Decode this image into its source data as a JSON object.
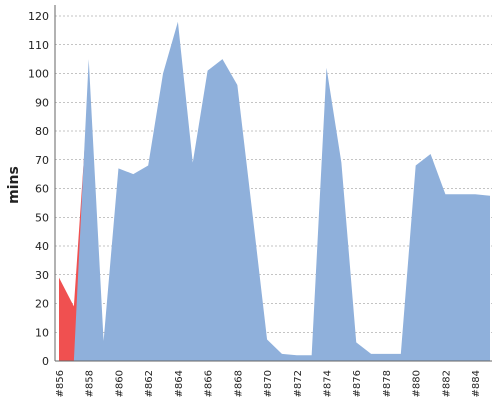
{
  "chart_data": {
    "type": "area",
    "y_label": "mins",
    "categories": [
      "#856",
      null,
      "#858",
      null,
      "#860",
      null,
      "#862",
      null,
      "#864",
      null,
      "#866",
      null,
      "#868",
      null,
      "#870",
      null,
      "#872",
      null,
      "#874",
      null,
      "#876",
      null,
      "#878",
      null,
      "#880",
      null,
      "#882",
      null,
      "#884",
      null
    ],
    "series": [
      {
        "color": "#f05050",
        "values": [
          29,
          19,
          95,
          null,
          null,
          null,
          null,
          null,
          null,
          null,
          null,
          null,
          null,
          null,
          null,
          null,
          null,
          null,
          null,
          null,
          null,
          null,
          null,
          null,
          null,
          null,
          null,
          null,
          null,
          null
        ]
      },
      {
        "color": "#8fb0db",
        "values": [
          null,
          0,
          105,
          7,
          67,
          65,
          68,
          100,
          118,
          69,
          101,
          105,
          96,
          52,
          7.5,
          2.5,
          2,
          2,
          102,
          69,
          6.5,
          2.5,
          2.5,
          2.5,
          68,
          72,
          58,
          58,
          58,
          57.5
        ]
      }
    ],
    "ylim": [
      0,
      120
    ],
    "yticks": [
      0,
      10,
      20,
      30,
      40,
      50,
      60,
      70,
      80,
      90,
      100,
      110,
      120
    ],
    "grid": true
  }
}
